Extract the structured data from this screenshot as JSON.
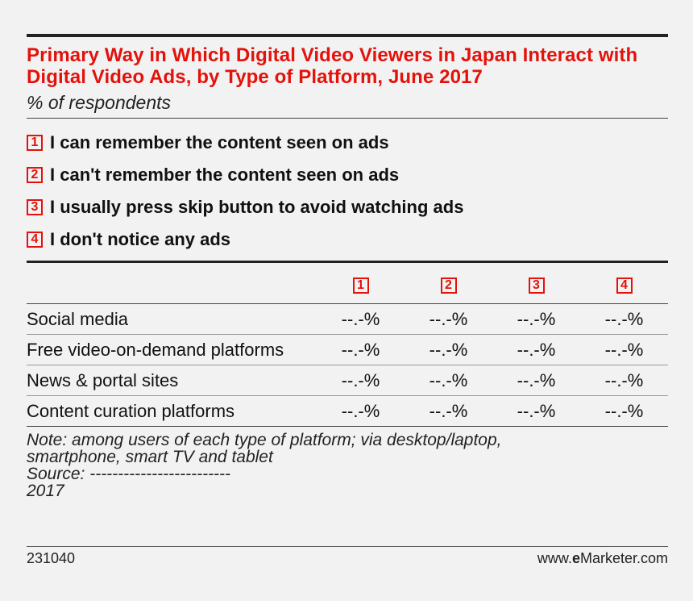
{
  "chart_data": {
    "type": "table",
    "title": "Primary Way in Which Digital Video Viewers in Japan Interact with Digital Video Ads, by Type of Platform, June 2017",
    "subtitle": "% of respondents",
    "legend": [
      {
        "key": "1",
        "label": "I can remember the content seen on ads"
      },
      {
        "key": "2",
        "label": "I can't remember the content seen on ads"
      },
      {
        "key": "3",
        "label": "I usually press skip button to avoid watching ads"
      },
      {
        "key": "4",
        "label": "I don't notice any ads"
      }
    ],
    "columns": [
      "1",
      "2",
      "3",
      "4"
    ],
    "rows": [
      {
        "label": "Social media",
        "values": [
          "--.-%",
          "--.-%",
          "--.-%",
          "--.-%"
        ]
      },
      {
        "label": "Free video-on-demand platforms",
        "values": [
          "--.-%",
          "--.-%",
          "--.-%",
          "--.-%"
        ]
      },
      {
        "label": "News & portal sites",
        "values": [
          "--.-%",
          "--.-%",
          "--.-%",
          "--.-%"
        ]
      },
      {
        "label": "Content curation platforms",
        "values": [
          "--.-%",
          "--.-%",
          "--.-%",
          "--.-%"
        ]
      }
    ],
    "note_lines": [
      "Note: among users of each type of platform; via desktop/laptop,",
      "smartphone, smart TV and tablet",
      "Source: -------------------------",
      "2017"
    ]
  },
  "footer": {
    "id": "231040",
    "site_prefix": "www.",
    "brand_e": "e",
    "brand_rest": "Marketer",
    "site_suffix": ".com"
  },
  "colors": {
    "accent": "#e3120b",
    "background": "#f2f2f2"
  }
}
